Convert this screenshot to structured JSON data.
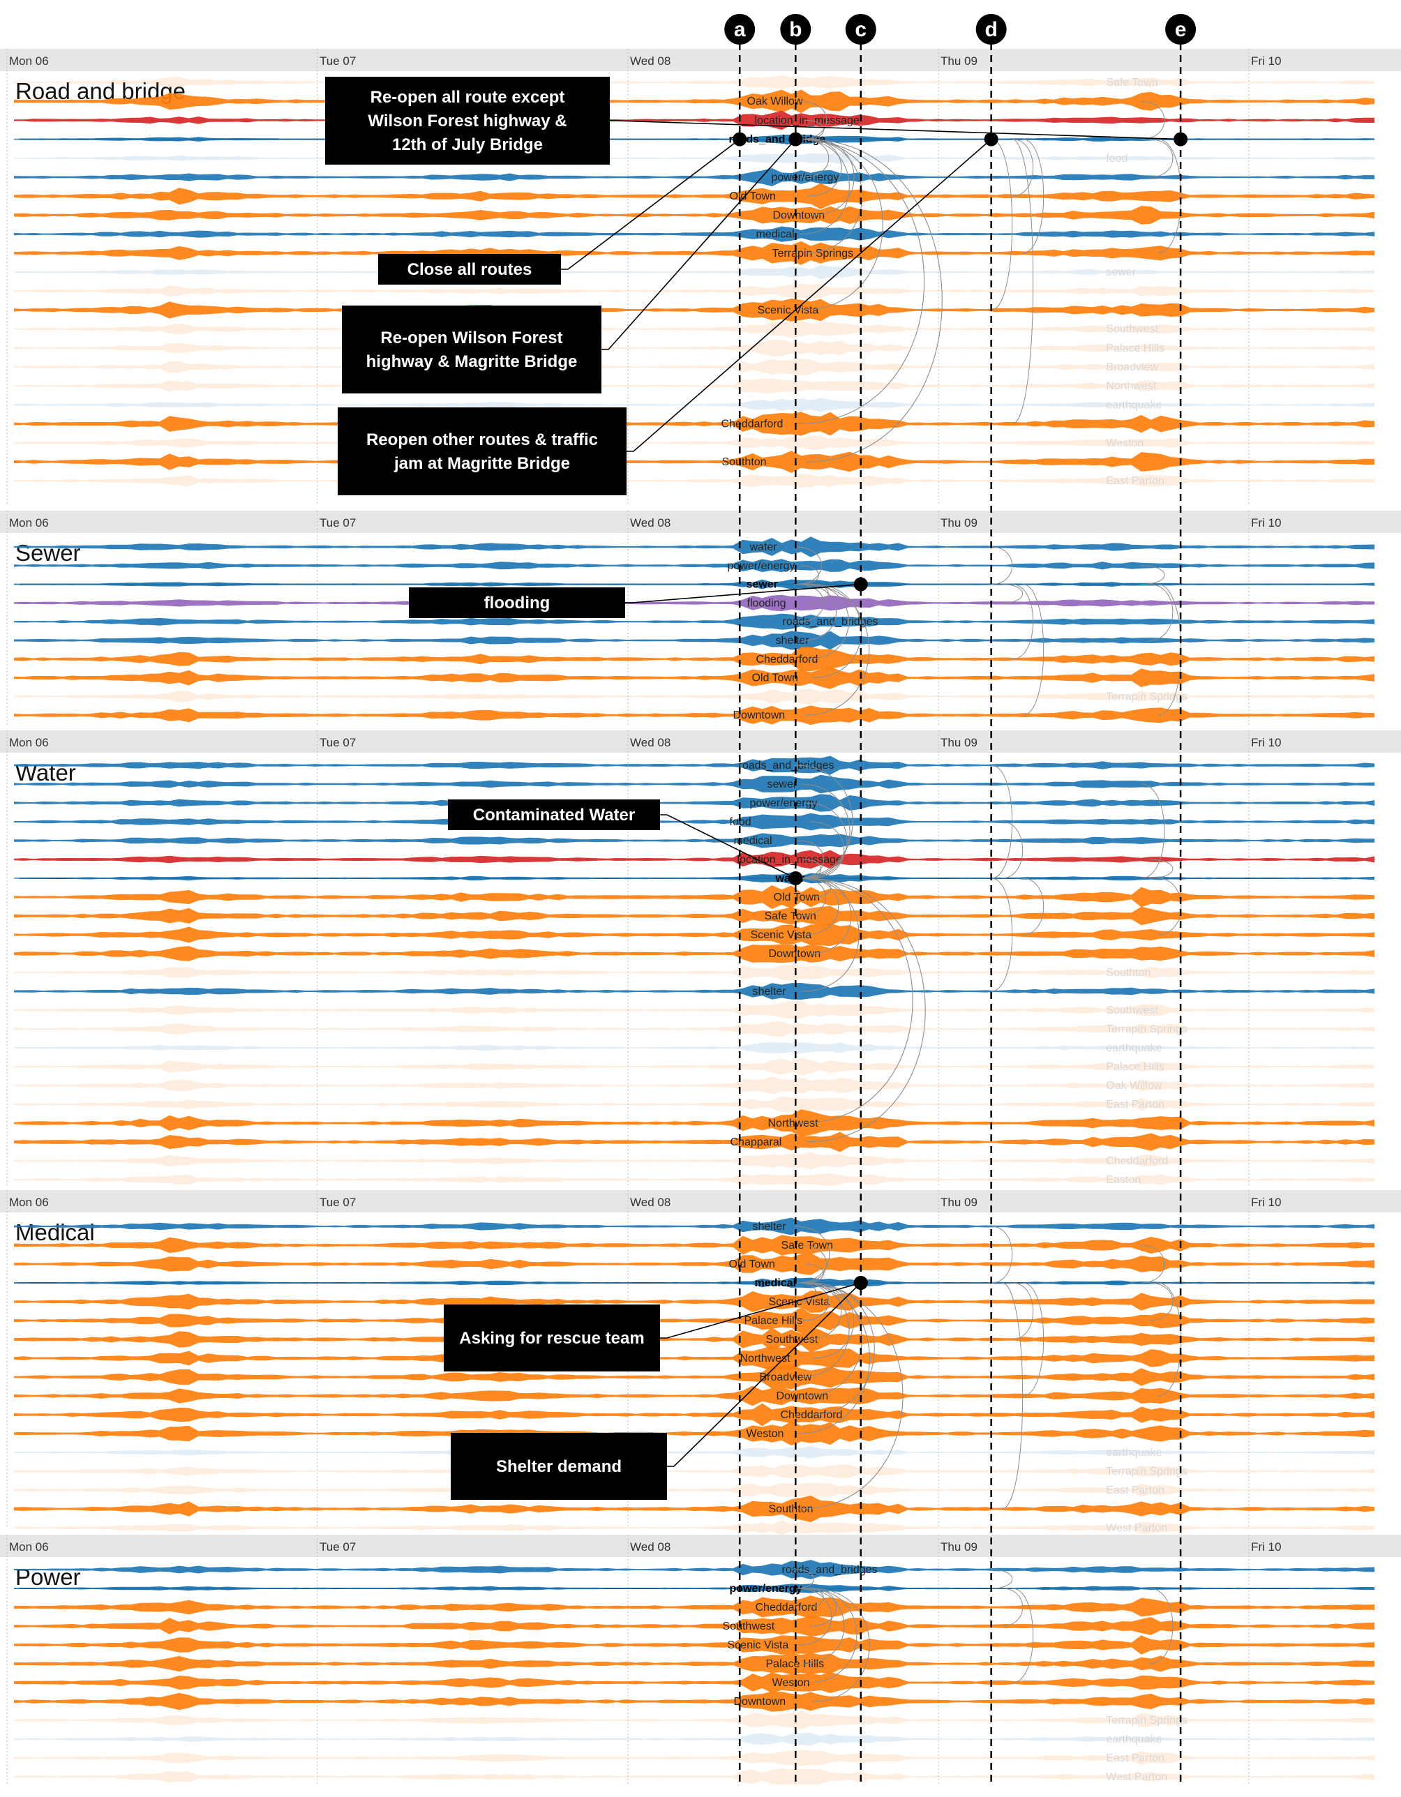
{
  "colors": {
    "location": "#ff7f0e",
    "topic": "#1f77b4",
    "location_in_message": "#d62728",
    "arc": "#8c8c8c",
    "header": "#e6e6e6",
    "annotation": "#000000"
  },
  "chart_data": {
    "type": "area",
    "days": [
      "Mon 06",
      "Tue 07",
      "Wed 08",
      "Thu 09",
      "Fri 10"
    ],
    "markers": [
      {
        "id": "a",
        "day": 2.36
      },
      {
        "id": "b",
        "day": 2.54
      },
      {
        "id": "c",
        "day": 2.75
      },
      {
        "id": "d",
        "day": 3.17
      },
      {
        "id": "e",
        "day": 3.78
      }
    ],
    "panels": [
      {
        "title": "Road and bridge",
        "rows": [
          {
            "label": "Safe Town",
            "kind": "loc",
            "faded": true
          },
          {
            "label": "Oak Willow",
            "kind": "loc",
            "faded": false
          },
          {
            "label": "location_in_message",
            "kind": "red",
            "faded": false
          },
          {
            "label": "roads_and_bridge",
            "kind": "topic",
            "faded": false,
            "focus": true
          },
          {
            "label": "food",
            "kind": "topic",
            "faded": true
          },
          {
            "label": "power/energy",
            "kind": "topic",
            "faded": false
          },
          {
            "label": "Old Town",
            "kind": "loc",
            "faded": false
          },
          {
            "label": "Downtown",
            "kind": "loc",
            "faded": false
          },
          {
            "label": "medical",
            "kind": "topic",
            "faded": false
          },
          {
            "label": "Terrapin Springs",
            "kind": "loc",
            "faded": false
          },
          {
            "label": "sewer",
            "kind": "topic",
            "faded": true
          },
          {
            "label": "",
            "kind": "loc",
            "faded": true
          },
          {
            "label": "Scenic Vista",
            "kind": "loc",
            "faded": false
          },
          {
            "label": "Southwest",
            "kind": "loc",
            "faded": true
          },
          {
            "label": "Palace Hills",
            "kind": "loc",
            "faded": true
          },
          {
            "label": "Broadview",
            "kind": "loc",
            "faded": true
          },
          {
            "label": "Northwest",
            "kind": "loc",
            "faded": true
          },
          {
            "label": "earthquake",
            "kind": "topic",
            "faded": true
          },
          {
            "label": "Cheddarford",
            "kind": "loc",
            "faded": false
          },
          {
            "label": "Weston",
            "kind": "loc",
            "faded": true
          },
          {
            "label": "Southton",
            "kind": "loc",
            "faded": false
          },
          {
            "label": "East Parton",
            "kind": "loc",
            "faded": true
          }
        ]
      },
      {
        "title": "Sewer",
        "rows": [
          {
            "label": "water",
            "kind": "topic",
            "faded": false
          },
          {
            "label": "power/energy",
            "kind": "topic",
            "faded": false
          },
          {
            "label": "sewer",
            "kind": "topic",
            "faded": false,
            "focus": true
          },
          {
            "label": "flooding",
            "kind": "purple",
            "faded": false
          },
          {
            "label": "roads_and_bridges",
            "kind": "topic",
            "faded": false
          },
          {
            "label": "shelter",
            "kind": "topic",
            "faded": false
          },
          {
            "label": "Cheddarford",
            "kind": "loc",
            "faded": false
          },
          {
            "label": "Old Town",
            "kind": "loc",
            "faded": false
          },
          {
            "label": "Terrapin Springs",
            "kind": "loc",
            "faded": true
          },
          {
            "label": "Downtown",
            "kind": "loc",
            "faded": false
          }
        ]
      },
      {
        "title": "Water",
        "rows": [
          {
            "label": "roads_and_bridges",
            "kind": "topic",
            "faded": false
          },
          {
            "label": "sewer",
            "kind": "topic",
            "faded": false
          },
          {
            "label": "power/energy",
            "kind": "topic",
            "faded": false
          },
          {
            "label": "food",
            "kind": "topic",
            "faded": false
          },
          {
            "label": "medical",
            "kind": "topic",
            "faded": false
          },
          {
            "label": "location_in_message",
            "kind": "red",
            "faded": false
          },
          {
            "label": "water",
            "kind": "topic",
            "faded": false,
            "focus": true
          },
          {
            "label": "Old Town",
            "kind": "loc",
            "faded": false
          },
          {
            "label": "Safe Town",
            "kind": "loc",
            "faded": false
          },
          {
            "label": "Scenic Vista",
            "kind": "loc",
            "faded": false
          },
          {
            "label": "Downtown",
            "kind": "loc",
            "faded": false
          },
          {
            "label": "Southton",
            "kind": "loc",
            "faded": true
          },
          {
            "label": "shelter",
            "kind": "topic",
            "faded": false
          },
          {
            "label": "Southwest",
            "kind": "loc",
            "faded": true
          },
          {
            "label": "Terrapin Springs",
            "kind": "loc",
            "faded": true
          },
          {
            "label": "earthquake",
            "kind": "topic",
            "faded": true
          },
          {
            "label": "Palace Hills",
            "kind": "loc",
            "faded": true
          },
          {
            "label": "Oak Willow",
            "kind": "loc",
            "faded": true
          },
          {
            "label": "East Parton",
            "kind": "loc",
            "faded": true
          },
          {
            "label": "Northwest",
            "kind": "loc",
            "faded": false
          },
          {
            "label": "Chapparal",
            "kind": "loc",
            "faded": false
          },
          {
            "label": "Cheddarford",
            "kind": "loc",
            "faded": true
          },
          {
            "label": "Easton",
            "kind": "loc",
            "faded": true
          }
        ]
      },
      {
        "title": "Medical",
        "rows": [
          {
            "label": "shelter",
            "kind": "topic",
            "faded": false
          },
          {
            "label": "Safe Town",
            "kind": "loc",
            "faded": false
          },
          {
            "label": "Old Town",
            "kind": "loc",
            "faded": false
          },
          {
            "label": "medical",
            "kind": "topic",
            "faded": false,
            "focus": true
          },
          {
            "label": "Scenic Vista",
            "kind": "loc",
            "faded": false
          },
          {
            "label": "Palace Hills",
            "kind": "loc",
            "faded": false
          },
          {
            "label": "Southwest",
            "kind": "loc",
            "faded": false
          },
          {
            "label": "Northwest",
            "kind": "loc",
            "faded": false
          },
          {
            "label": "Broadview",
            "kind": "loc",
            "faded": false
          },
          {
            "label": "Downtown",
            "kind": "loc",
            "faded": false
          },
          {
            "label": "Cheddarford",
            "kind": "loc",
            "faded": false
          },
          {
            "label": "Weston",
            "kind": "loc",
            "faded": false
          },
          {
            "label": "earthquake",
            "kind": "topic",
            "faded": true
          },
          {
            "label": "Terrapin Springs",
            "kind": "loc",
            "faded": true
          },
          {
            "label": "East Parton",
            "kind": "loc",
            "faded": true
          },
          {
            "label": "Southton",
            "kind": "loc",
            "faded": false
          },
          {
            "label": "West Parton",
            "kind": "loc",
            "faded": true
          }
        ]
      },
      {
        "title": "Power",
        "rows": [
          {
            "label": "roads_and_bridges",
            "kind": "topic",
            "faded": false
          },
          {
            "label": "power/energy",
            "kind": "topic",
            "faded": false,
            "focus": true
          },
          {
            "label": "Cheddarford",
            "kind": "loc",
            "faded": false
          },
          {
            "label": "Southwest",
            "kind": "loc",
            "faded": false
          },
          {
            "label": "Scenic Vista",
            "kind": "loc",
            "faded": false
          },
          {
            "label": "Palace Hills",
            "kind": "loc",
            "faded": false
          },
          {
            "label": "Weston",
            "kind": "loc",
            "faded": false
          },
          {
            "label": "Downtown",
            "kind": "loc",
            "faded": false
          },
          {
            "label": "Terrapin Springs",
            "kind": "loc",
            "faded": true
          },
          {
            "label": "earthquake",
            "kind": "topic",
            "faded": true
          },
          {
            "label": "East Parton",
            "kind": "loc",
            "faded": true
          },
          {
            "label": "West Parton",
            "kind": "loc",
            "faded": true
          }
        ]
      }
    ],
    "annotations": [
      {
        "panel": 0,
        "lines": [
          "Re-open all route except",
          "Wilson Forest highway  &",
          "12th of July Bridge"
        ],
        "marker": "e"
      },
      {
        "panel": 0,
        "lines": [
          "Close all routes"
        ],
        "marker": "a"
      },
      {
        "panel": 0,
        "lines": [
          "Re-open Wilson Forest",
          "highway & Magritte Bridge"
        ],
        "marker": "b"
      },
      {
        "panel": 0,
        "lines": [
          "Reopen other routes & traffic",
          "jam at Magritte Bridge"
        ],
        "marker": "d"
      },
      {
        "panel": 1,
        "lines": [
          "flooding"
        ],
        "marker": "c"
      },
      {
        "panel": 2,
        "lines": [
          "Contaminated Water"
        ],
        "marker": "b"
      },
      {
        "panel": 3,
        "lines": [
          "Asking for rescue team"
        ],
        "marker": "c"
      },
      {
        "panel": 3,
        "lines": [
          "Shelter demand"
        ],
        "marker": "c"
      }
    ]
  }
}
